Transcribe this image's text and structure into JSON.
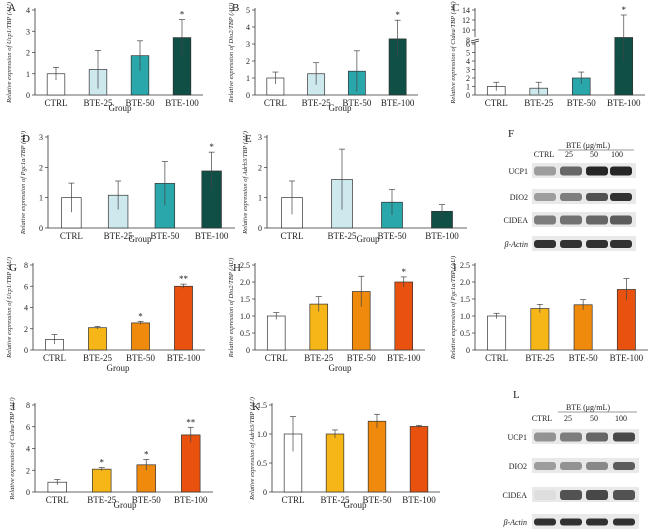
{
  "chart_data": [
    {
      "id": "A",
      "type": "bar",
      "ylabel": "Relative expression of Ucp1/TBP (AU)",
      "xlabel": "Group",
      "categories": [
        "CTRL",
        "BTE-25",
        "BTE-50",
        "BTE-100"
      ],
      "values": [
        1.0,
        1.2,
        1.85,
        2.7
      ],
      "errors": [
        0.3,
        0.9,
        0.7,
        0.85
      ],
      "ylim": [
        0,
        4
      ],
      "yticks": [
        0,
        1,
        2,
        3,
        4
      ],
      "ytick_labels": [
        "0",
        "1",
        "2",
        "3",
        "4"
      ],
      "colors": [
        "#ffffff",
        "#cde9ee",
        "#2aa7ab",
        "#0f4f45"
      ],
      "stars": [
        "",
        "",
        "",
        "*"
      ]
    },
    {
      "id": "B",
      "type": "bar",
      "ylabel": "Relative expression of Dio2/TBP (AU)",
      "xlabel": "Group",
      "categories": [
        "CTRL",
        "BTE-25",
        "BTE-50",
        "BTE-100"
      ],
      "values": [
        1.0,
        1.25,
        1.4,
        3.3
      ],
      "errors": [
        0.35,
        0.65,
        1.2,
        1.1
      ],
      "ylim": [
        0,
        5
      ],
      "yticks": [
        0,
        1,
        2,
        3,
        4,
        5
      ],
      "ytick_labels": [
        "0",
        "1",
        "2",
        "3",
        "4",
        "5"
      ],
      "colors": [
        "#ffffff",
        "#cde9ee",
        "#2aa7ab",
        "#0f4f45"
      ],
      "stars": [
        "",
        "",
        "",
        "*"
      ]
    },
    {
      "id": "C",
      "type": "bar",
      "ylabel": "Relative expression of Cidea/TBP (AU)",
      "xlabel": "",
      "categories": [
        "CTRL",
        "BTE-25",
        "BTE-50",
        "BTE-100"
      ],
      "values": [
        1.0,
        0.8,
        2.0,
        8.5
      ],
      "errors": [
        0.5,
        0.7,
        0.7,
        4.5
      ],
      "ylim": [
        0,
        14
      ],
      "yticks": [
        0,
        1,
        2,
        3,
        4,
        5,
        6,
        8,
        10,
        12,
        14
      ],
      "ytick_labels": [
        "0",
        "1",
        "2",
        "3",
        "4",
        "5",
        "6",
        "8",
        "10",
        "12",
        "14"
      ],
      "colors": [
        "#ffffff",
        "#cde9ee",
        "#2aa7ab",
        "#0f4f45"
      ],
      "stars": [
        "",
        "",
        "",
        "*"
      ],
      "axis_break": true
    },
    {
      "id": "D",
      "type": "bar",
      "ylabel": "Relative expression of Pgc1a/TBP (AU)",
      "xlabel": "Group",
      "categories": [
        "CTRL",
        "BTE-25",
        "BTE-50",
        "BTE-100"
      ],
      "values": [
        1.0,
        1.08,
        1.47,
        1.88
      ],
      "errors": [
        0.48,
        0.47,
        0.72,
        0.62
      ],
      "ylim": [
        0,
        3
      ],
      "yticks": [
        0,
        1,
        2,
        3
      ],
      "ytick_labels": [
        "0",
        "1",
        "2",
        "3"
      ],
      "colors": [
        "#ffffff",
        "#cde9ee",
        "#2aa7ab",
        "#0f4f45"
      ],
      "stars": [
        "",
        "",
        "",
        "*"
      ]
    },
    {
      "id": "E",
      "type": "bar",
      "ylabel": "Relative expression of Adrb3/TBP (AU)",
      "xlabel": "Group",
      "categories": [
        "CTRL",
        "BTE-25",
        "BTE-50",
        "BTE-100"
      ],
      "values": [
        1.0,
        1.6,
        0.85,
        0.55
      ],
      "errors": [
        0.55,
        1.0,
        0.42,
        0.22
      ],
      "ylim": [
        0,
        3
      ],
      "yticks": [
        0,
        1,
        2,
        3
      ],
      "ytick_labels": [
        "0",
        "1",
        "2",
        "3"
      ],
      "colors": [
        "#ffffff",
        "#cde9ee",
        "#2aa7ab",
        "#0f4f45"
      ],
      "stars": [
        "",
        "",
        "",
        ""
      ]
    },
    {
      "id": "G",
      "type": "bar",
      "ylabel": "Relative expression of Ucp1/TBP (AU)",
      "xlabel": "Group",
      "categories": [
        "CTRL",
        "BTE-25",
        "BTE-50",
        "BTE-100"
      ],
      "values": [
        1.0,
        2.1,
        2.55,
        6.0
      ],
      "errors": [
        0.45,
        0.12,
        0.15,
        0.2
      ],
      "ylim": [
        0,
        8
      ],
      "yticks": [
        0,
        2,
        4,
        6,
        8
      ],
      "ytick_labels": [
        "0",
        "2",
        "4",
        "6",
        "8"
      ],
      "colors": [
        "#ffffff",
        "#f7b618",
        "#f08a0c",
        "#e8520e"
      ],
      "stars": [
        "",
        "",
        "*",
        "**"
      ]
    },
    {
      "id": "H",
      "type": "bar",
      "ylabel": "Relative expression of Dio2/TBP (AU)",
      "xlabel": "Group",
      "categories": [
        "CTRL",
        "BTE-25",
        "BTE-50",
        "BTE-100"
      ],
      "values": [
        1.0,
        1.35,
        1.72,
        2.0
      ],
      "errors": [
        0.1,
        0.22,
        0.45,
        0.15
      ],
      "ylim": [
        0,
        2.5
      ],
      "yticks": [
        0,
        0.5,
        1.0,
        1.5,
        2.0,
        2.5
      ],
      "ytick_labels": [
        "0",
        "0.5",
        "1.0",
        "1.5",
        "2.0",
        "2.5"
      ],
      "colors": [
        "#ffffff",
        "#f7b618",
        "#f08a0c",
        "#e8520e"
      ],
      "stars": [
        "",
        "",
        "",
        "*"
      ]
    },
    {
      "id": "I",
      "type": "bar",
      "ylabel": "Relative expression of Pgc1a/TBP (AU)",
      "xlabel": "",
      "categories": [
        "CTRL",
        "BTE-25",
        "BTE-50",
        "BTE-100"
      ],
      "values": [
        1.0,
        1.22,
        1.33,
        1.78
      ],
      "errors": [
        0.08,
        0.12,
        0.15,
        0.32
      ],
      "ylim": [
        0,
        2.5
      ],
      "yticks": [
        0,
        0.5,
        1.0,
        1.5,
        2.0,
        2.5
      ],
      "ytick_labels": [
        "0",
        "0.5",
        "1.0",
        "1.5",
        "2.0",
        "2.5"
      ],
      "colors": [
        "#ffffff",
        "#f7b618",
        "#f08a0c",
        "#e8520e"
      ],
      "stars": [
        "",
        "",
        "",
        ""
      ]
    },
    {
      "id": "J",
      "type": "bar",
      "ylabel": "Relative expression of Cidea/TBP (AU)",
      "xlabel": "Group",
      "categories": [
        "CTRL",
        "BTE-25",
        "BTE-50",
        "BTE-100"
      ],
      "values": [
        0.9,
        2.1,
        2.5,
        5.25
      ],
      "errors": [
        0.25,
        0.15,
        0.5,
        0.7
      ],
      "ylim": [
        0,
        8
      ],
      "yticks": [
        0,
        2,
        4,
        6,
        8
      ],
      "ytick_labels": [
        "0",
        "2",
        "4",
        "6",
        "8"
      ],
      "colors": [
        "#ffffff",
        "#f7b618",
        "#f08a0c",
        "#e8520e"
      ],
      "stars": [
        "",
        "*",
        "*",
        "**"
      ]
    },
    {
      "id": "K",
      "type": "bar",
      "ylabel": "Relative expression of Adrb3/TBP (AU)",
      "xlabel": "Group",
      "categories": [
        "CTRL",
        "BTE-25",
        "BTE-50",
        "BTE-100"
      ],
      "values": [
        1.0,
        1.0,
        1.22,
        1.13
      ],
      "errors": [
        0.3,
        0.07,
        0.12,
        0.02
      ],
      "ylim": [
        0,
        1.5
      ],
      "yticks": [
        0,
        0.5,
        1.0,
        1.5
      ],
      "ytick_labels": [
        "0",
        "0.5",
        "1.0",
        "1.5"
      ],
      "colors": [
        "#ffffff",
        "#f7b618",
        "#f08a0c",
        "#e8520e"
      ],
      "stars": [
        "",
        "",
        "",
        ""
      ]
    }
  ],
  "blots": [
    {
      "id": "F",
      "header": "BTE (μg/mL)",
      "lanes": [
        "CTRL",
        "25",
        "50",
        "100"
      ],
      "rows": [
        "UCP1",
        "DIO2",
        "CIDEA",
        "β-Actin"
      ]
    },
    {
      "id": "L",
      "header": "BTE (μg/mL)",
      "lanes": [
        "CTRL",
        "25",
        "50",
        "100"
      ],
      "rows": [
        "UCP1",
        "DIO2",
        "CIDEA",
        "β-Actin"
      ]
    }
  ]
}
